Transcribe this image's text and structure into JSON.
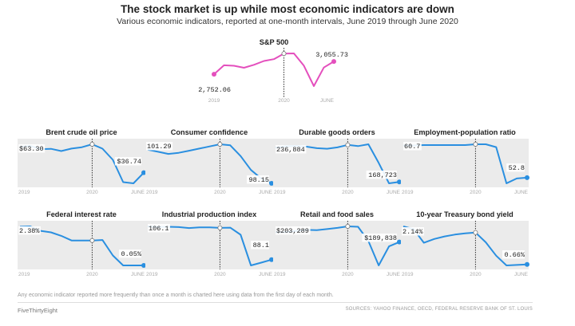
{
  "header": {
    "title": "The stock market is up while most economic indicators are down",
    "subtitle": "Various economic indicators, reported at one-month intervals, June 2019 through June 2020"
  },
  "footer": {
    "note": "Any economic indicator reported more frequently than once a month is charted here using data from the first day of each month.",
    "brand": "FiveThirtyEight",
    "sources": "SOURCES: YAHOO FINANCE, OECD, FEDERAL RESERVE BANK OF ST. LOUIS"
  },
  "colors": {
    "highlight": "#e44fbd",
    "line": "#2a8fe0",
    "panel_bg": "#ebebeb",
    "label_bg": "#ffffff"
  },
  "chart_data": [
    {
      "type": "line",
      "title": "S&P 500",
      "x": [
        "2019-06",
        "2019-07",
        "2019-08",
        "2019-09",
        "2019-10",
        "2019-11",
        "2019-12",
        "2020-01",
        "2020-02",
        "2020-03",
        "2020-04",
        "2020-05",
        "2020-06"
      ],
      "values": [
        2752.06,
        2965,
        2953,
        2906,
        2977,
        3067,
        3112,
        3244,
        3248,
        2955,
        2470,
        2912,
        3055.73
      ],
      "start_label": "2,752.06",
      "end_label": "3,055.73",
      "tick_labels": [
        "2019",
        "2020",
        "JUNE"
      ],
      "highlight": true,
      "grid": false
    },
    {
      "type": "line",
      "title": "Brent crude oil price",
      "x": [
        "2019-06",
        "2019-07",
        "2019-08",
        "2019-09",
        "2019-10",
        "2019-11",
        "2019-12",
        "2020-01",
        "2020-02",
        "2020-03",
        "2020-04",
        "2020-05",
        "2020-06"
      ],
      "values": [
        63.3,
        64.4,
        61.0,
        61.3,
        59.0,
        61.6,
        63.0,
        66.0,
        61.5,
        50.0,
        27.0,
        25.8,
        36.74
      ],
      "start_label": "$63.30",
      "end_label": "$36.74",
      "tick_labels": [
        "2019",
        "2020",
        "JUNE"
      ]
    },
    {
      "type": "line",
      "title": "Consumer confidence",
      "x": [
        "2019-06",
        "2019-07",
        "2019-08",
        "2019-09",
        "2019-10",
        "2019-11",
        "2019-12",
        "2020-01",
        "2020-02",
        "2020-03",
        "2020-04",
        "2020-05",
        "2020-06"
      ],
      "values": [
        101.29,
        101.1,
        100.9,
        101.0,
        101.2,
        101.4,
        101.6,
        101.8,
        101.7,
        100.7,
        99.4,
        98.6,
        98.15
      ],
      "start_label": "101.29",
      "end_label": "98.15",
      "tick_labels": [
        "2019",
        "2020",
        "JUNE"
      ]
    },
    {
      "type": "line",
      "title": "Durable goods orders",
      "x": [
        "2019-06",
        "2019-07",
        "2019-08",
        "2019-09",
        "2019-10",
        "2019-11",
        "2019-12",
        "2020-01",
        "2020-02",
        "2020-03",
        "2020-04",
        "2020-05",
        "2020-06"
      ],
      "values": [
        236884,
        239500,
        240300,
        238800,
        235800,
        234600,
        237400,
        242200,
        239800,
        243500,
        206500,
        165900,
        168723
      ],
      "start_label": "236,884",
      "end_label": "168,723",
      "tick_labels": [
        "2019",
        "2020",
        "JUNE"
      ]
    },
    {
      "type": "line",
      "title": "Employment-population ratio",
      "x": [
        "2019-06",
        "2019-07",
        "2019-08",
        "2019-09",
        "2019-10",
        "2019-11",
        "2019-12",
        "2020-01",
        "2020-02",
        "2020-03",
        "2020-04",
        "2020-05",
        "2020-06"
      ],
      "values": [
        60.7,
        60.7,
        60.8,
        60.8,
        60.8,
        60.8,
        60.8,
        61.0,
        61.0,
        60.3,
        51.4,
        52.6,
        52.8
      ],
      "start_label": "60.7",
      "end_label": "52.8",
      "tick_labels": [
        "2019",
        "2020",
        "JUNE"
      ]
    },
    {
      "type": "line",
      "title": "Federal interest rate",
      "x": [
        "2019-06",
        "2019-07",
        "2019-08",
        "2019-09",
        "2019-10",
        "2019-11",
        "2019-12",
        "2020-01",
        "2020-02",
        "2020-03",
        "2020-04",
        "2020-05",
        "2020-06"
      ],
      "values": [
        2.38,
        2.4,
        2.13,
        2.04,
        1.83,
        1.55,
        1.55,
        1.55,
        1.58,
        0.65,
        0.05,
        0.05,
        0.05
      ],
      "start_label": "2.38%",
      "end_label": "0.05%",
      "tick_labels": [
        "2019",
        "2020",
        "JUNE"
      ]
    },
    {
      "type": "line",
      "title": "Industrial production index",
      "x": [
        "2019-06",
        "2019-07",
        "2019-08",
        "2019-09",
        "2019-10",
        "2019-11",
        "2019-12",
        "2020-01",
        "2020-02",
        "2020-03",
        "2020-04",
        "2020-05",
        "2020-06"
      ],
      "values": [
        106.1,
        105.8,
        105.9,
        105.7,
        105.2,
        105.6,
        105.6,
        105.3,
        105.4,
        101.6,
        85.0,
        86.5,
        88.1
      ],
      "start_label": "106.1",
      "end_label": "88.1",
      "tick_labels": [
        "2019",
        "2020",
        "JUNE"
      ]
    },
    {
      "type": "line",
      "title": "Retail and food sales",
      "x": [
        "2019-06",
        "2019-07",
        "2019-08",
        "2019-09",
        "2019-10",
        "2019-11",
        "2019-12",
        "2020-01",
        "2020-02",
        "2020-03",
        "2020-04",
        "2020-05",
        "2020-06"
      ],
      "values": [
        203289,
        203600,
        205200,
        206700,
        206200,
        207700,
        209400,
        211500,
        210900,
        191200,
        157500,
        183800,
        189838
      ],
      "start_label": "$203,289",
      "end_label": "$189,838",
      "tick_labels": [
        "2019",
        "2020",
        "JUNE"
      ]
    },
    {
      "type": "line",
      "title": "10-year Treasury bond yield",
      "x": [
        "2019-06",
        "2019-07",
        "2019-08",
        "2019-09",
        "2019-10",
        "2019-11",
        "2019-12",
        "2020-01",
        "2020-02",
        "2020-03",
        "2020-04",
        "2020-05",
        "2020-06"
      ],
      "values": [
        2.14,
        2.03,
        1.5,
        1.65,
        1.75,
        1.82,
        1.87,
        1.9,
        1.52,
        1.0,
        0.62,
        0.64,
        0.66
      ],
      "start_label": "2.14%",
      "end_label": "0.66%",
      "tick_labels": [
        "2019",
        "2020",
        "JUNE"
      ]
    }
  ]
}
